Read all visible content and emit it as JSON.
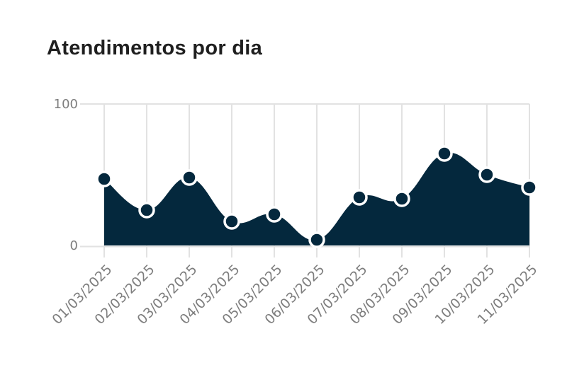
{
  "title": "Atendimentos por dia",
  "chart_data": {
    "type": "area",
    "title": "Atendimentos por dia",
    "x": [
      "01/03/2025",
      "02/03/2025",
      "03/03/2025",
      "04/03/2025",
      "05/03/2025",
      "06/03/2025",
      "07/03/2025",
      "08/03/2025",
      "09/03/2025",
      "10/03/2025",
      "11/03/2025"
    ],
    "values": [
      47,
      25,
      48,
      17,
      22,
      4,
      34,
      33,
      65,
      50,
      41
    ],
    "xlabel": "",
    "ylabel": "",
    "ylim": [
      0,
      100
    ],
    "yticks": [
      0,
      100
    ],
    "grid": "vertical-only",
    "legend": false,
    "smooth": true,
    "marker": "filled-circle-white-ring",
    "x_tick_rotation": -45
  },
  "colors": {
    "background": "#ffffff",
    "title": "#1f1f1f",
    "area_fill": "#04283d",
    "marker_fill": "#04283d",
    "marker_stroke": "#ffffff",
    "grid": "#e2e2e2",
    "axis_line": "#e2e2e2",
    "tick_label": "#7e7e7e"
  }
}
